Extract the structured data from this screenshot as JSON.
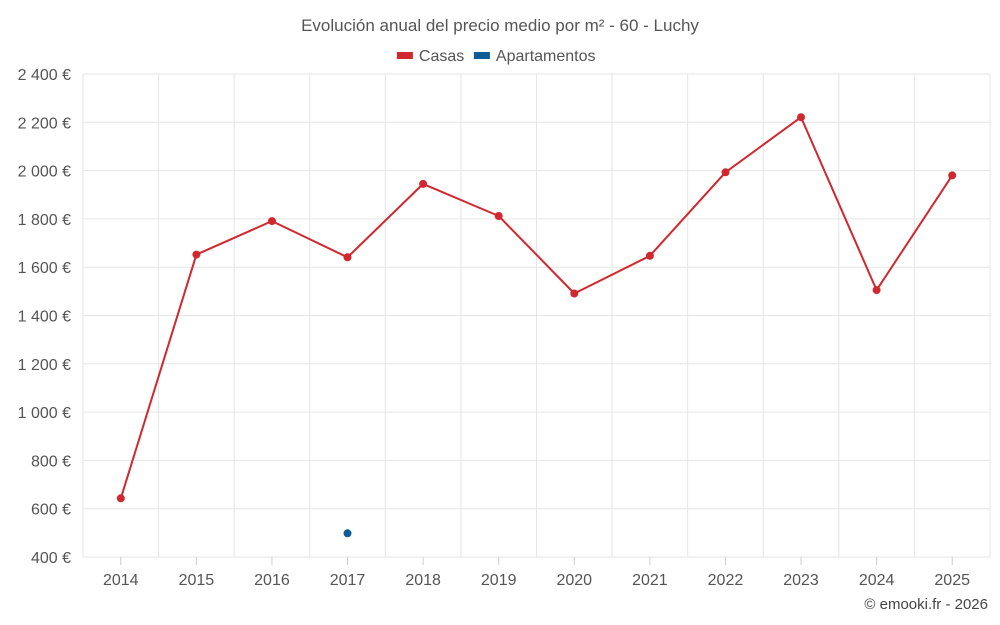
{
  "chart_data": {
    "type": "line",
    "title": "Evolución anual del precio medio por m² - 60 - Luchy",
    "categories": [
      "2014",
      "2015",
      "2016",
      "2017",
      "2018",
      "2019",
      "2020",
      "2021",
      "2022",
      "2023",
      "2024",
      "2025"
    ],
    "series": [
      {
        "name": "Casas",
        "color": "#d0282e",
        "values": [
          643,
          1652,
          1791,
          1641,
          1945,
          1812,
          1491,
          1647,
          1993,
          2221,
          1505,
          1980
        ]
      },
      {
        "name": "Apartamentos",
        "color": "#0e5d97",
        "values": [
          null,
          null,
          null,
          498,
          null,
          null,
          null,
          null,
          null,
          null,
          null,
          null
        ]
      }
    ],
    "ylim": [
      400,
      2400
    ],
    "yticks": [
      400,
      600,
      800,
      1000,
      1200,
      1400,
      1600,
      1800,
      2000,
      2200,
      2400
    ],
    "ytick_labels": [
      "400 €",
      "600 €",
      "800 €",
      "1 000 €",
      "1 200 €",
      "1 400 €",
      "1 600 €",
      "1 800 €",
      "2 000 €",
      "2 200 €",
      "2 400 €"
    ],
    "xlabel": "",
    "ylabel": "",
    "grid": true,
    "legend": "top-center"
  },
  "credit": "© emooki.fr - 2026"
}
